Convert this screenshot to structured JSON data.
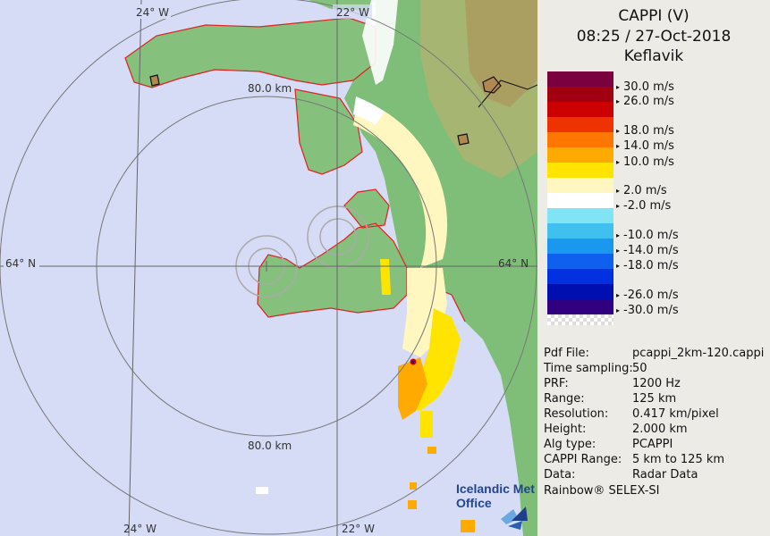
{
  "header": {
    "title": "CAPPI (V)",
    "datetime": "08:25 / 27-Oct-2018",
    "site": "Keflavik"
  },
  "map": {
    "lon_labels_top": [
      "24° W",
      "22° W"
    ],
    "lon_labels_bottom": [
      "24° W",
      "22° W"
    ],
    "lat_labels": [
      "64° N",
      "64° N"
    ],
    "ring_labels": [
      "80.0 km",
      "80.0 km"
    ]
  },
  "legend": {
    "unit": "m/s",
    "labels": [
      "30.0 m/s",
      "26.0 m/s",
      "18.0 m/s",
      "14.0 m/s",
      "10.0 m/s",
      "2.0 m/s",
      "-2.0 m/s",
      "-10.0 m/s",
      "-14.0 m/s",
      "-18.0 m/s",
      "-26.0 m/s",
      "-30.0 m/s"
    ],
    "colors": [
      "#7a0040",
      "#a00010",
      "#cc0000",
      "#ee3300",
      "#ff7700",
      "#ffaa00",
      "#ffe400",
      "#fff6c0",
      "#ffffff",
      "#80e4f4",
      "#40c0ee",
      "#1a98f0",
      "#1060f0",
      "#0030e0",
      "#0010b0",
      "#300080"
    ]
  },
  "meta": [
    {
      "key": "Pdf File:",
      "value": "pcappi_2km-120.cappi"
    },
    {
      "key": "Time sampling:",
      "value": "50"
    },
    {
      "key": "PRF:",
      "value": "1200 Hz"
    },
    {
      "key": "Range:",
      "value": "125 km"
    },
    {
      "key": "Resolution:",
      "value": "0.417 km/pixel"
    },
    {
      "key": "Height:",
      "value": "2.000 km"
    },
    {
      "key": "Alg type:",
      "value": "PCAPPI"
    },
    {
      "key": "CAPPI Range:",
      "value": "5 km to 125 km"
    },
    {
      "key": "Data:",
      "value": "Radar Data"
    }
  ],
  "footer": "Rainbow® SELEX-SI",
  "logo": {
    "line1": "Icelandic Met",
    "line2": "Office"
  }
}
